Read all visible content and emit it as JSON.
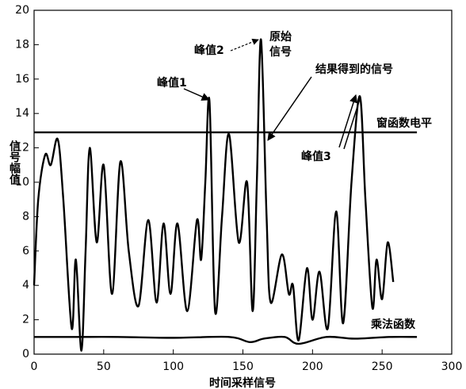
{
  "chart_data": {
    "type": "line",
    "xlabel": "时间采样信号",
    "ylabel": "信号幅值",
    "xlim": [
      0,
      300
    ],
    "xticks": [
      0,
      50,
      100,
      150,
      200,
      250,
      300
    ],
    "ylim": [
      0,
      20
    ],
    "yticks": [
      0,
      2,
      4,
      6,
      8,
      10,
      12,
      14,
      16,
      18,
      20
    ],
    "grid": false,
    "annotations": [
      "峰值1",
      "峰值2",
      "原始",
      "信号",
      "结果得到的信号",
      "窗函数电平",
      "峰值3",
      "乘法函数"
    ],
    "series": [
      {
        "color": "#000000",
        "x": [
          0,
          3,
          8,
          12,
          17,
          21,
          27,
          30,
          34,
          37,
          40,
          45,
          50,
          56,
          62,
          68,
          75,
          82,
          88,
          93,
          98,
          103,
          110,
          117,
          120,
          123,
          126,
          130,
          135,
          140,
          147,
          153,
          157,
          160,
          163,
          167,
          170,
          178,
          183,
          186,
          190,
          196,
          200,
          205,
          211,
          217,
          222,
          228,
          234,
          238,
          243,
          246,
          250,
          254,
          258
        ],
        "values": [
          4,
          9,
          11.6,
          11,
          12.5,
          9,
          1.5,
          5.5,
          0.2,
          6,
          12,
          6.5,
          11,
          3.5,
          11.2,
          6,
          2.8,
          7.8,
          3,
          7.6,
          3.5,
          7.6,
          2.5,
          7.8,
          5.5,
          10,
          14.7,
          2.5,
          8,
          12.8,
          6.5,
          10,
          2.5,
          10,
          18.3,
          8,
          3,
          5.8,
          3.5,
          4,
          0.8,
          5,
          2,
          4.8,
          1.5,
          8.3,
          1.8,
          10,
          15,
          9,
          2.7,
          5.5,
          3.2,
          6.5,
          4.2
        ]
      },
      {
        "color": "#000000",
        "x": [
          0,
          275
        ],
        "values": [
          12.9,
          12.9
        ]
      },
      {
        "color": "#000000",
        "x": [
          0,
          30,
          60,
          100,
          140,
          155,
          165,
          180,
          190,
          210,
          230,
          255,
          275
        ],
        "values": [
          1,
          1,
          1,
          0.95,
          1,
          0.7,
          0.9,
          1,
          0.6,
          1,
          0.9,
          1,
          1
        ]
      }
    ]
  }
}
